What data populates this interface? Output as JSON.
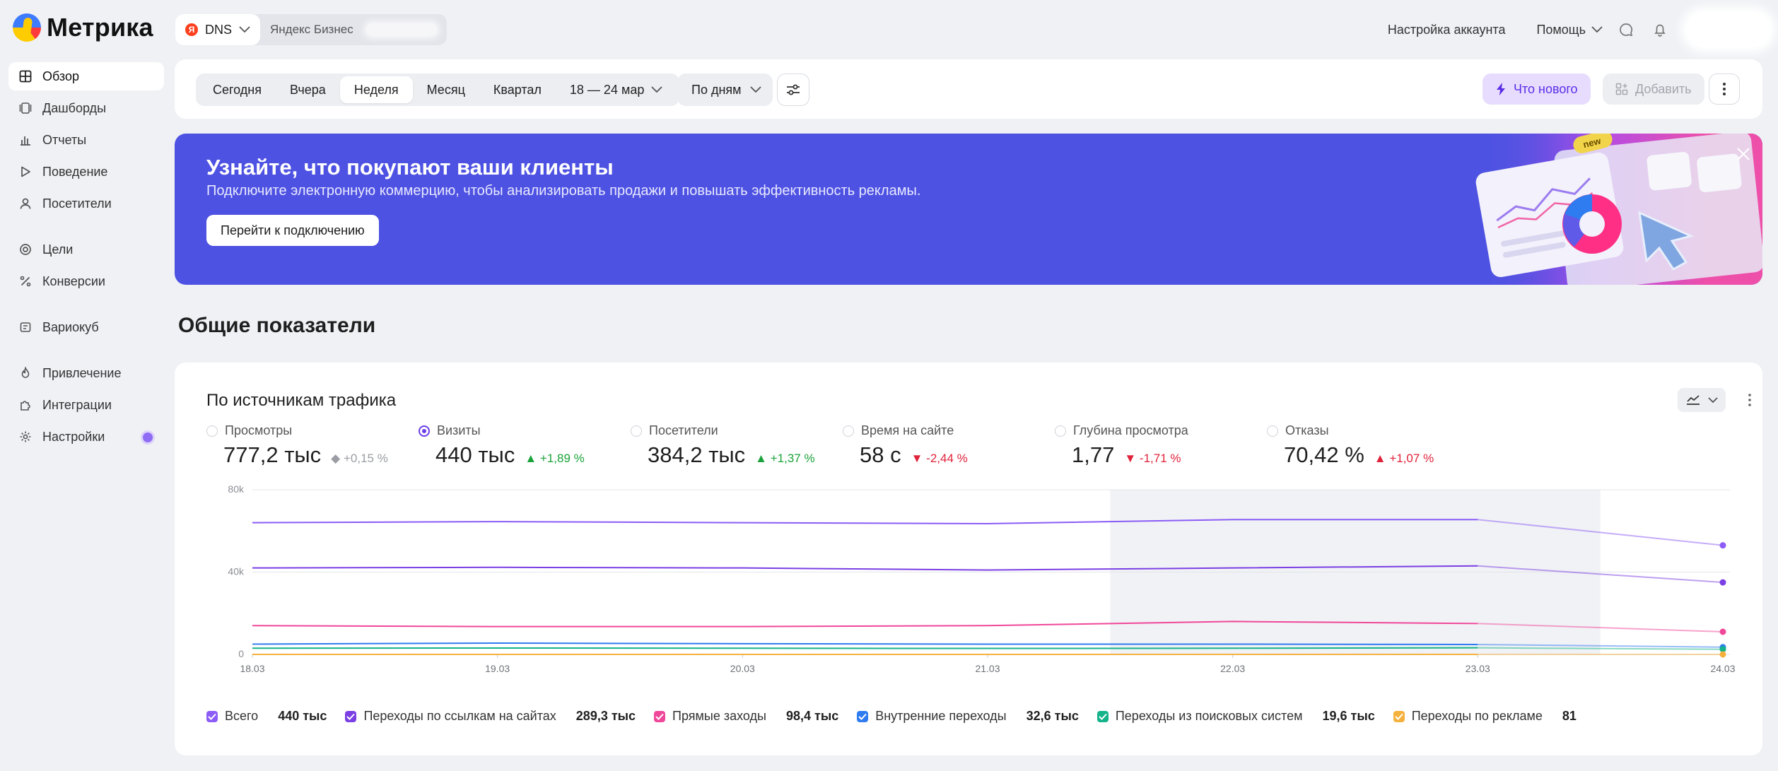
{
  "app": {
    "logo_text": "Метрика"
  },
  "counter": {
    "name": "DNS",
    "ya_letter": "Я",
    "owner_label": "Яндекс Бизнес"
  },
  "top_nav": {
    "account_settings": "Настройка аккаунта",
    "help": "Помощь"
  },
  "sidebar": {
    "items": [
      {
        "label": "Обзор",
        "icon": "grid-icon",
        "active": true
      },
      {
        "label": "Дашборды",
        "icon": "dashboards-icon"
      },
      {
        "label": "Отчеты",
        "icon": "bar-chart-icon"
      },
      {
        "label": "Поведение",
        "icon": "play-icon"
      },
      {
        "label": "Посетители",
        "icon": "person-icon"
      },
      {
        "label": "Цели",
        "icon": "target-icon"
      },
      {
        "label": "Конверсии",
        "icon": "percent-icon"
      },
      {
        "label": "Вариокуб",
        "icon": "variocube-icon"
      },
      {
        "label": "Привлечение",
        "icon": "flame-icon"
      },
      {
        "label": "Интеграции",
        "icon": "puzzle-icon"
      },
      {
        "label": "Настройки",
        "icon": "gear-icon",
        "has_dot": true
      }
    ]
  },
  "toolbar": {
    "periods": [
      "Сегодня",
      "Вчера",
      "Неделя",
      "Месяц",
      "Квартал"
    ],
    "active_period": "Неделя",
    "date_range": "18 — 24 мар",
    "grouping": "По дням",
    "whats_new": "Что нового",
    "add": "Добавить"
  },
  "banner": {
    "title": "Узнайте, что покупают ваши клиенты",
    "subtitle": "Подключите электронную коммерцию, чтобы анализировать продажи и повышать эффективность рекламы.",
    "button": "Перейти к подключению",
    "badge": "new"
  },
  "section": {
    "title": "Общие показатели"
  },
  "card": {
    "title": "По источникам трафика",
    "metrics": [
      {
        "label": "Просмотры",
        "value": "777,2 тыс",
        "delta": "+0,15 %",
        "trend": "neutral",
        "selected": false
      },
      {
        "label": "Визиты",
        "value": "440 тыс",
        "delta": "+1,89 %",
        "trend": "up",
        "selected": true
      },
      {
        "label": "Посетители",
        "value": "384,2 тыс",
        "delta": "+1,37 %",
        "trend": "up",
        "selected": false
      },
      {
        "label": "Время на сайте",
        "value": "58 с",
        "delta": "-2,44 %",
        "trend": "down",
        "selected": false
      },
      {
        "label": "Глубина просмотра",
        "value": "1,77",
        "delta": "-1,71 %",
        "trend": "down",
        "selected": false
      },
      {
        "label": "Отказы",
        "value": "70,42 %",
        "delta": "+1,07 %",
        "trend": "up-bad",
        "selected": false
      }
    ],
    "legend": [
      {
        "name": "Всего",
        "value": "440 тыс",
        "color": "#8b5cf6"
      },
      {
        "name": "Переходы по ссылкам на сайтах",
        "value": "289,3 тыс",
        "color": "#7b3fe4"
      },
      {
        "name": "Прямые заходы",
        "value": "98,4 тыс",
        "color": "#f0479a"
      },
      {
        "name": "Внутренние переходы",
        "value": "32,6 тыс",
        "color": "#2f7bf0"
      },
      {
        "name": "Переходы из поисковых систем",
        "value": "19,6 тыс",
        "color": "#14b38a"
      },
      {
        "name": "Переходы по рекламе",
        "value": "81",
        "color": "#f5b13d"
      }
    ]
  },
  "chart_data": {
    "type": "line",
    "x": [
      "18.03",
      "19.03",
      "20.03",
      "21.03",
      "22.03",
      "23.03",
      "24.03"
    ],
    "y_ticks": [
      "80k",
      "40k",
      "0"
    ],
    "ylim": [
      0,
      80000
    ],
    "highlight_range": [
      "21.5",
      "23.5"
    ],
    "series": [
      {
        "name": "Всего",
        "color": "#8b5cf6",
        "values": [
          64000,
          64500,
          64000,
          63500,
          65500,
          65500,
          53000
        ]
      },
      {
        "name": "Переходы по ссылкам на сайтах",
        "color": "#7b3fe4",
        "values": [
          42000,
          42300,
          42000,
          41000,
          42000,
          43000,
          35000
        ]
      },
      {
        "name": "Прямые заходы",
        "color": "#f0479a",
        "values": [
          14000,
          13500,
          13500,
          14000,
          16000,
          15000,
          11000
        ]
      },
      {
        "name": "Внутренние переходы",
        "color": "#2f7bf0",
        "values": [
          5000,
          5500,
          5200,
          5000,
          5000,
          4800,
          3500
        ]
      },
      {
        "name": "Переходы из поисковых систем",
        "color": "#14b38a",
        "values": [
          3000,
          3100,
          3000,
          2900,
          3000,
          3200,
          2500
        ]
      },
      {
        "name": "Переходы по рекламе",
        "color": "#f5b13d",
        "values": [
          10,
          12,
          11,
          10,
          12,
          13,
          8
        ]
      }
    ],
    "grid": true,
    "legend_position": "bottom"
  }
}
